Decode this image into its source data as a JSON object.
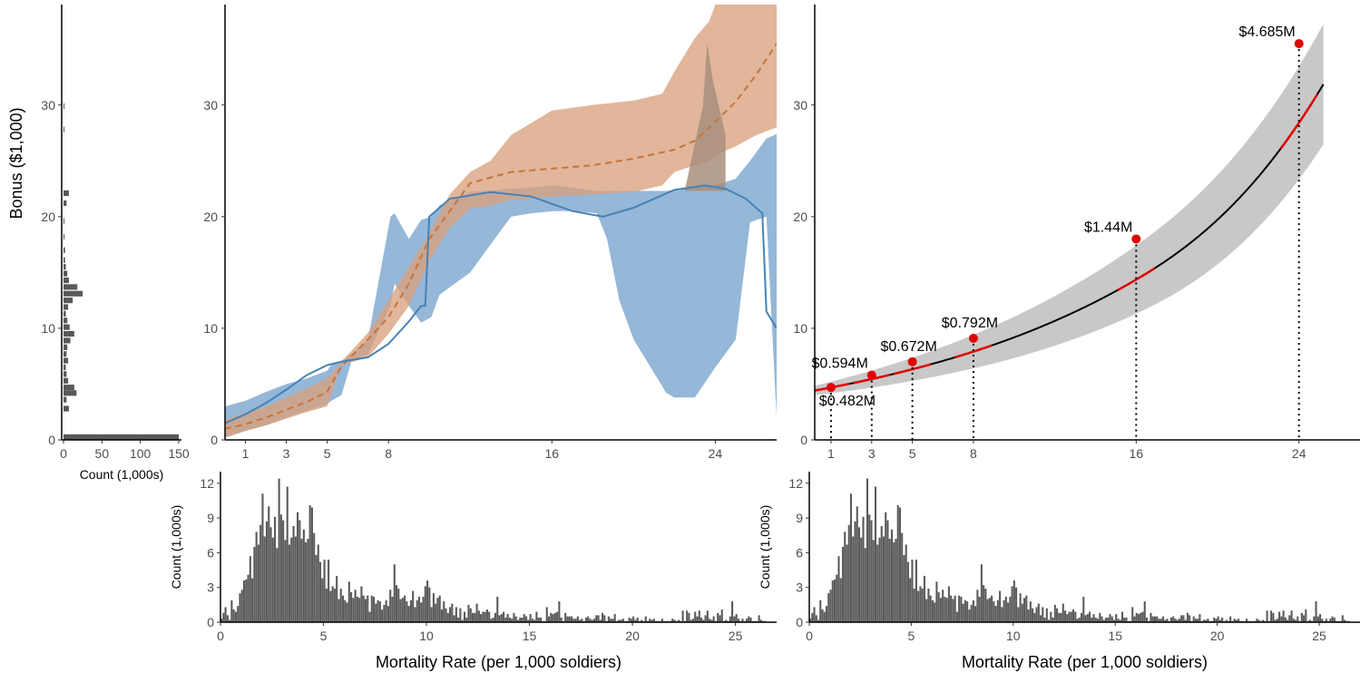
{
  "colors": {
    "blue": "#4682b4",
    "blue_band": "#8fb3d6",
    "orange": "#c6743a",
    "orange_band": "#d9a27d",
    "overlap_band": "#a88e7d",
    "gray_band": "#c8c8c8",
    "bars": "#595959",
    "red": "#e00000",
    "black": "#000000"
  },
  "chart_data": [
    {
      "type": "bar",
      "orientation": "horizontal",
      "name": "bonus-histogram",
      "ylabel": "Bonus ($1,000)",
      "xlabel": "Count (1,000s)",
      "xticks": [
        "0",
        "50",
        "100",
        "150"
      ],
      "yticks": [
        "0",
        "10",
        "20",
        "30"
      ],
      "ylim": [
        0,
        39
      ],
      "xlim": [
        0,
        155
      ],
      "bins": [
        {
          "y": 0.25,
          "count": 150
        },
        {
          "y": 2.8,
          "count": 7
        },
        {
          "y": 3.6,
          "count": 4
        },
        {
          "y": 4.2,
          "count": 17
        },
        {
          "y": 4.7,
          "count": 14
        },
        {
          "y": 5.3,
          "count": 6
        },
        {
          "y": 5.9,
          "count": 4
        },
        {
          "y": 6.5,
          "count": 3
        },
        {
          "y": 7.1,
          "count": 6
        },
        {
          "y": 7.7,
          "count": 4
        },
        {
          "y": 8.3,
          "count": 5
        },
        {
          "y": 8.9,
          "count": 9
        },
        {
          "y": 9.5,
          "count": 14
        },
        {
          "y": 10.1,
          "count": 8
        },
        {
          "y": 10.7,
          "count": 5
        },
        {
          "y": 11.3,
          "count": 3
        },
        {
          "y": 11.9,
          "count": 6
        },
        {
          "y": 12.5,
          "count": 12
        },
        {
          "y": 13.1,
          "count": 25
        },
        {
          "y": 13.7,
          "count": 18
        },
        {
          "y": 14.3,
          "count": 7
        },
        {
          "y": 14.9,
          "count": 5
        },
        {
          "y": 15.5,
          "count": 3
        },
        {
          "y": 16.1,
          "count": 2
        },
        {
          "y": 17.0,
          "count": 2
        },
        {
          "y": 18.2,
          "count": 1
        },
        {
          "y": 19.6,
          "count": 1
        },
        {
          "y": 21.2,
          "count": 4
        },
        {
          "y": 22.1,
          "count": 7
        },
        {
          "y": 27.8,
          "count": 1
        },
        {
          "y": 29.9,
          "count": 1
        }
      ]
    },
    {
      "type": "line",
      "name": "center-bonus-curves",
      "xticks": [
        "1",
        "3",
        "5",
        "8",
        "16",
        "24"
      ],
      "yticks": [
        "0",
        "10",
        "20",
        "30"
      ],
      "xlim": [
        0,
        27
      ],
      "ylim": [
        0,
        39
      ],
      "series": [
        {
          "style": "solid",
          "color": "blue",
          "x": [
            0,
            1,
            2,
            3,
            4,
            5,
            5.7,
            7,
            8,
            9,
            9.6,
            9.8,
            10,
            11,
            13,
            15,
            17,
            18.5,
            20,
            22,
            23.5,
            24.5,
            25.5,
            26.3,
            26.5,
            27
          ],
          "y": [
            1.5,
            2.3,
            3.3,
            4.5,
            5.8,
            6.7,
            7.0,
            7.4,
            8.6,
            10.6,
            12.0,
            12.0,
            20.0,
            21.6,
            22.2,
            21.8,
            20.5,
            20.0,
            20.8,
            22.4,
            22.8,
            22.5,
            21.6,
            20.3,
            11.5,
            10.0
          ],
          "band_x": [
            0,
            1,
            2,
            3,
            4,
            5,
            5.2,
            5.7,
            6.2,
            7,
            8.1,
            8.3,
            9,
            9.6,
            10.1,
            10.5,
            12,
            14,
            15,
            16.1,
            17,
            18.2,
            18.7,
            19.3,
            20,
            21.6,
            22,
            23,
            24,
            25,
            25.7,
            26.5,
            27
          ],
          "band_upper": [
            3,
            3.5,
            4.3,
            5.0,
            5.5,
            6.2,
            6.7,
            7.1,
            7.7,
            9.0,
            20.0,
            20.3,
            18.0,
            19.7,
            20.0,
            21.0,
            22.2,
            22.5,
            22.6,
            22.8,
            22.6,
            22.3,
            22.3,
            22.3,
            22.3,
            22.3,
            22.4,
            22.6,
            22.8,
            23.4,
            25.0,
            27.0,
            27.4
          ],
          "band_lower": [
            0.2,
            0.8,
            1.3,
            2.0,
            2.6,
            3.2,
            3.5,
            4.0,
            7.1,
            7.7,
            12.0,
            14.0,
            12.0,
            10.5,
            11.0,
            13.0,
            15.0,
            20.0,
            20.3,
            20.5,
            20.5,
            20.3,
            18.0,
            12.5,
            9.0,
            4.2,
            3.8,
            3.8,
            6.5,
            9.0,
            19.5,
            20.0,
            2.0
          ]
        },
        {
          "style": "dashed",
          "color": "orange",
          "x": [
            0,
            1,
            2,
            3,
            4,
            5,
            5.7,
            7,
            8,
            9,
            10,
            11,
            12,
            14,
            16,
            18,
            20,
            22,
            23,
            24,
            25,
            26,
            27
          ],
          "y": [
            1.0,
            1.4,
            2.0,
            2.7,
            3.4,
            4.3,
            6.6,
            9.0,
            11.0,
            14.0,
            18.0,
            20.5,
            23.0,
            24.0,
            24.3,
            24.6,
            25.2,
            26.0,
            26.8,
            28.5,
            30.3,
            32.7,
            35.5
          ],
          "band_x": [
            0,
            1,
            2,
            3,
            4,
            5,
            5.7,
            7,
            8,
            9,
            10,
            11,
            12,
            13,
            14,
            16,
            18,
            20,
            21.4,
            22,
            23,
            23.7,
            24,
            25,
            26,
            27
          ],
          "band_upper": [
            1.8,
            2.4,
            3.0,
            3.8,
            4.6,
            5.5,
            7.0,
            9.6,
            12.5,
            15.5,
            18.5,
            22.0,
            24.0,
            25.0,
            27.3,
            29.5,
            30.0,
            30.4,
            31.0,
            33.0,
            36.0,
            37.5,
            39.0,
            39.0,
            39.0,
            39.0
          ],
          "band_lower": [
            0.2,
            0.8,
            1.3,
            1.9,
            2.5,
            3.0,
            6.7,
            7.4,
            9.5,
            12.0,
            16.0,
            19.0,
            20.7,
            21.0,
            21.5,
            21.8,
            22.0,
            22.2,
            22.8,
            24.0,
            24.6,
            25.0,
            25.5,
            26.3,
            27.3,
            28.0
          ]
        }
      ],
      "spike": {
        "x": [
          22.5,
          23.4,
          23.6,
          23.9,
          24.5
        ],
        "y": [
          22.3,
          30.0,
          35.5,
          32.0,
          27.3
        ]
      }
    },
    {
      "type": "line",
      "name": "right-bonus-fit",
      "xticks": [
        "1",
        "3",
        "5",
        "8",
        "16",
        "24"
      ],
      "yticks": [
        "0",
        "10",
        "20",
        "30"
      ],
      "xlim": [
        0.2,
        27
      ],
      "ylim": [
        0,
        39
      ],
      "points": [
        {
          "x": 1,
          "y": 4.7,
          "label": "$0.482M",
          "label_pos": "below"
        },
        {
          "x": 3,
          "y": 5.8,
          "label": "$0.594M",
          "label_pos": "left"
        },
        {
          "x": 5,
          "y": 7.0,
          "label": "$0.672M",
          "label_pos": "above"
        },
        {
          "x": 8,
          "y": 9.1,
          "label": "$0.792M",
          "label_pos": "above"
        },
        {
          "x": 16,
          "y": 18.0,
          "label": "$1.44M",
          "label_pos": "left"
        },
        {
          "x": 24,
          "y": 35.5,
          "label": "$4.685M",
          "label_pos": "left"
        }
      ]
    },
    {
      "type": "bar",
      "name": "mortality-histogram",
      "xlabel": "Mortality Rate (per 1,000 soldiers)",
      "ylabel": "Count (1,000s)",
      "xticks": [
        "0",
        "5",
        "10",
        "15",
        "20",
        "25"
      ],
      "yticks": [
        "0",
        "3",
        "6",
        "9",
        "12"
      ],
      "xlim": [
        0,
        27
      ],
      "ylim": [
        0,
        13
      ],
      "bin_width": 0.1,
      "bin_start": 0,
      "counts": [
        0.3,
        0.8,
        1.3,
        0.6,
        0.2,
        1.9,
        1.1,
        0.9,
        1.4,
        2.5,
        2.8,
        3.6,
        3.7,
        4.1,
        5.7,
        3.8,
        6.5,
        7.8,
        6.7,
        8.4,
        11.1,
        7.4,
        8.7,
        10.0,
        8.2,
        7.3,
        9.1,
        6.4,
        12.4,
        9.3,
        8.8,
        7.1,
        11.7,
        6.7,
        7.3,
        8.3,
        7.4,
        9.5,
        8.8,
        7.2,
        8.0,
        6.9,
        7.2,
        10.1,
        9.9,
        7.7,
        5.8,
        6.7,
        5.2,
        3.8,
        5.4,
        2.9,
        5.4,
        2.7,
        3.1,
        2.9,
        4.0,
        2.0,
        2.9,
        2.3,
        1.9,
        1.7,
        3.5,
        2.6,
        2.1,
        2.8,
        2.2,
        2.1,
        3.1,
        2.3,
        2.0,
        2.3,
        0.9,
        2.3,
        2.2,
        1.6,
        1.9,
        1.8,
        1.1,
        1.5,
        1.9,
        1.4,
        2.8,
        2.2,
        5.0,
        3.2,
        2.9,
        2.0,
        2.1,
        2.3,
        1.8,
        1.4,
        1.9,
        2.7,
        1.3,
        1.9,
        2.2,
        1.7,
        2.2,
        3.1,
        3.6,
        3.0,
        1.3,
        2.5,
        1.6,
        2.1,
        2.3,
        1.1,
        1.8,
        1.2,
        0.8,
        1.3,
        1.6,
        0.6,
        1.3,
        0.4,
        1.2,
        0.2,
        0.9,
        0.4,
        1.5,
        1.2,
        0.8,
        0.8,
        1.6,
        1.0,
        0.7,
        0.9,
        0.9,
        1.1,
        0.9,
        0.3,
        0.4,
        0.8,
        2.2,
        0.6,
        0.7,
        0.9,
        0.4,
        0.7,
        0.4,
        0.3,
        0.8,
        0.5,
        0.2,
        0.4,
        0.4,
        0.7,
        0.5,
        0.2,
        0.7,
        0.3,
        0.2,
        0.9,
        0.4,
        0.4,
        0.1,
        0.1,
        1.3,
        0.5,
        0.8,
        0.7,
        0.8,
        0.9,
        1.8,
        0.4,
        0.1,
        0.8,
        0.5,
        0.5,
        0.5,
        0.3,
        0.3,
        0.5,
        0.2,
        0.3,
        0.1,
        0.4,
        0.5,
        0.3,
        0.2,
        0.3,
        0.6,
        0.6,
        0.2,
        0.8,
        0.6,
        0.1,
        0.5,
        0.3,
        0.3,
        0.7,
        0.1,
        0.2,
        0.2,
        0.3,
        0.1,
        0.1,
        0.4,
        0.3,
        0.5,
        0.2,
        0.4,
        0.1,
        0.2,
        0.1,
        0.5,
        0.1,
        0.3,
        0.2,
        0.3,
        0.1,
        0.1,
        0.1,
        0.3,
        0.1,
        0.1,
        0.1,
        0.1,
        0.3,
        0.2,
        0.1,
        0.2,
        0.1,
        1.0,
        0.1,
        1.0,
        0.8,
        0.2,
        0.3,
        0.9,
        0.5,
        1.0,
        0.4,
        0.2,
        0.6,
        1.0,
        0.3,
        0.2,
        0.5,
        0.1,
        0.8,
        0.6,
        1.1,
        0.1,
        0.2,
        0.1,
        0.5,
        1.8,
        0.5,
        0.7,
        0.3,
        0.1,
        0.3,
        0.1,
        0.3,
        0.5,
        0.4,
        0.1,
        0.1,
        0.1,
        0.6,
        0.2,
        0.1,
        0.1
      ]
    }
  ]
}
